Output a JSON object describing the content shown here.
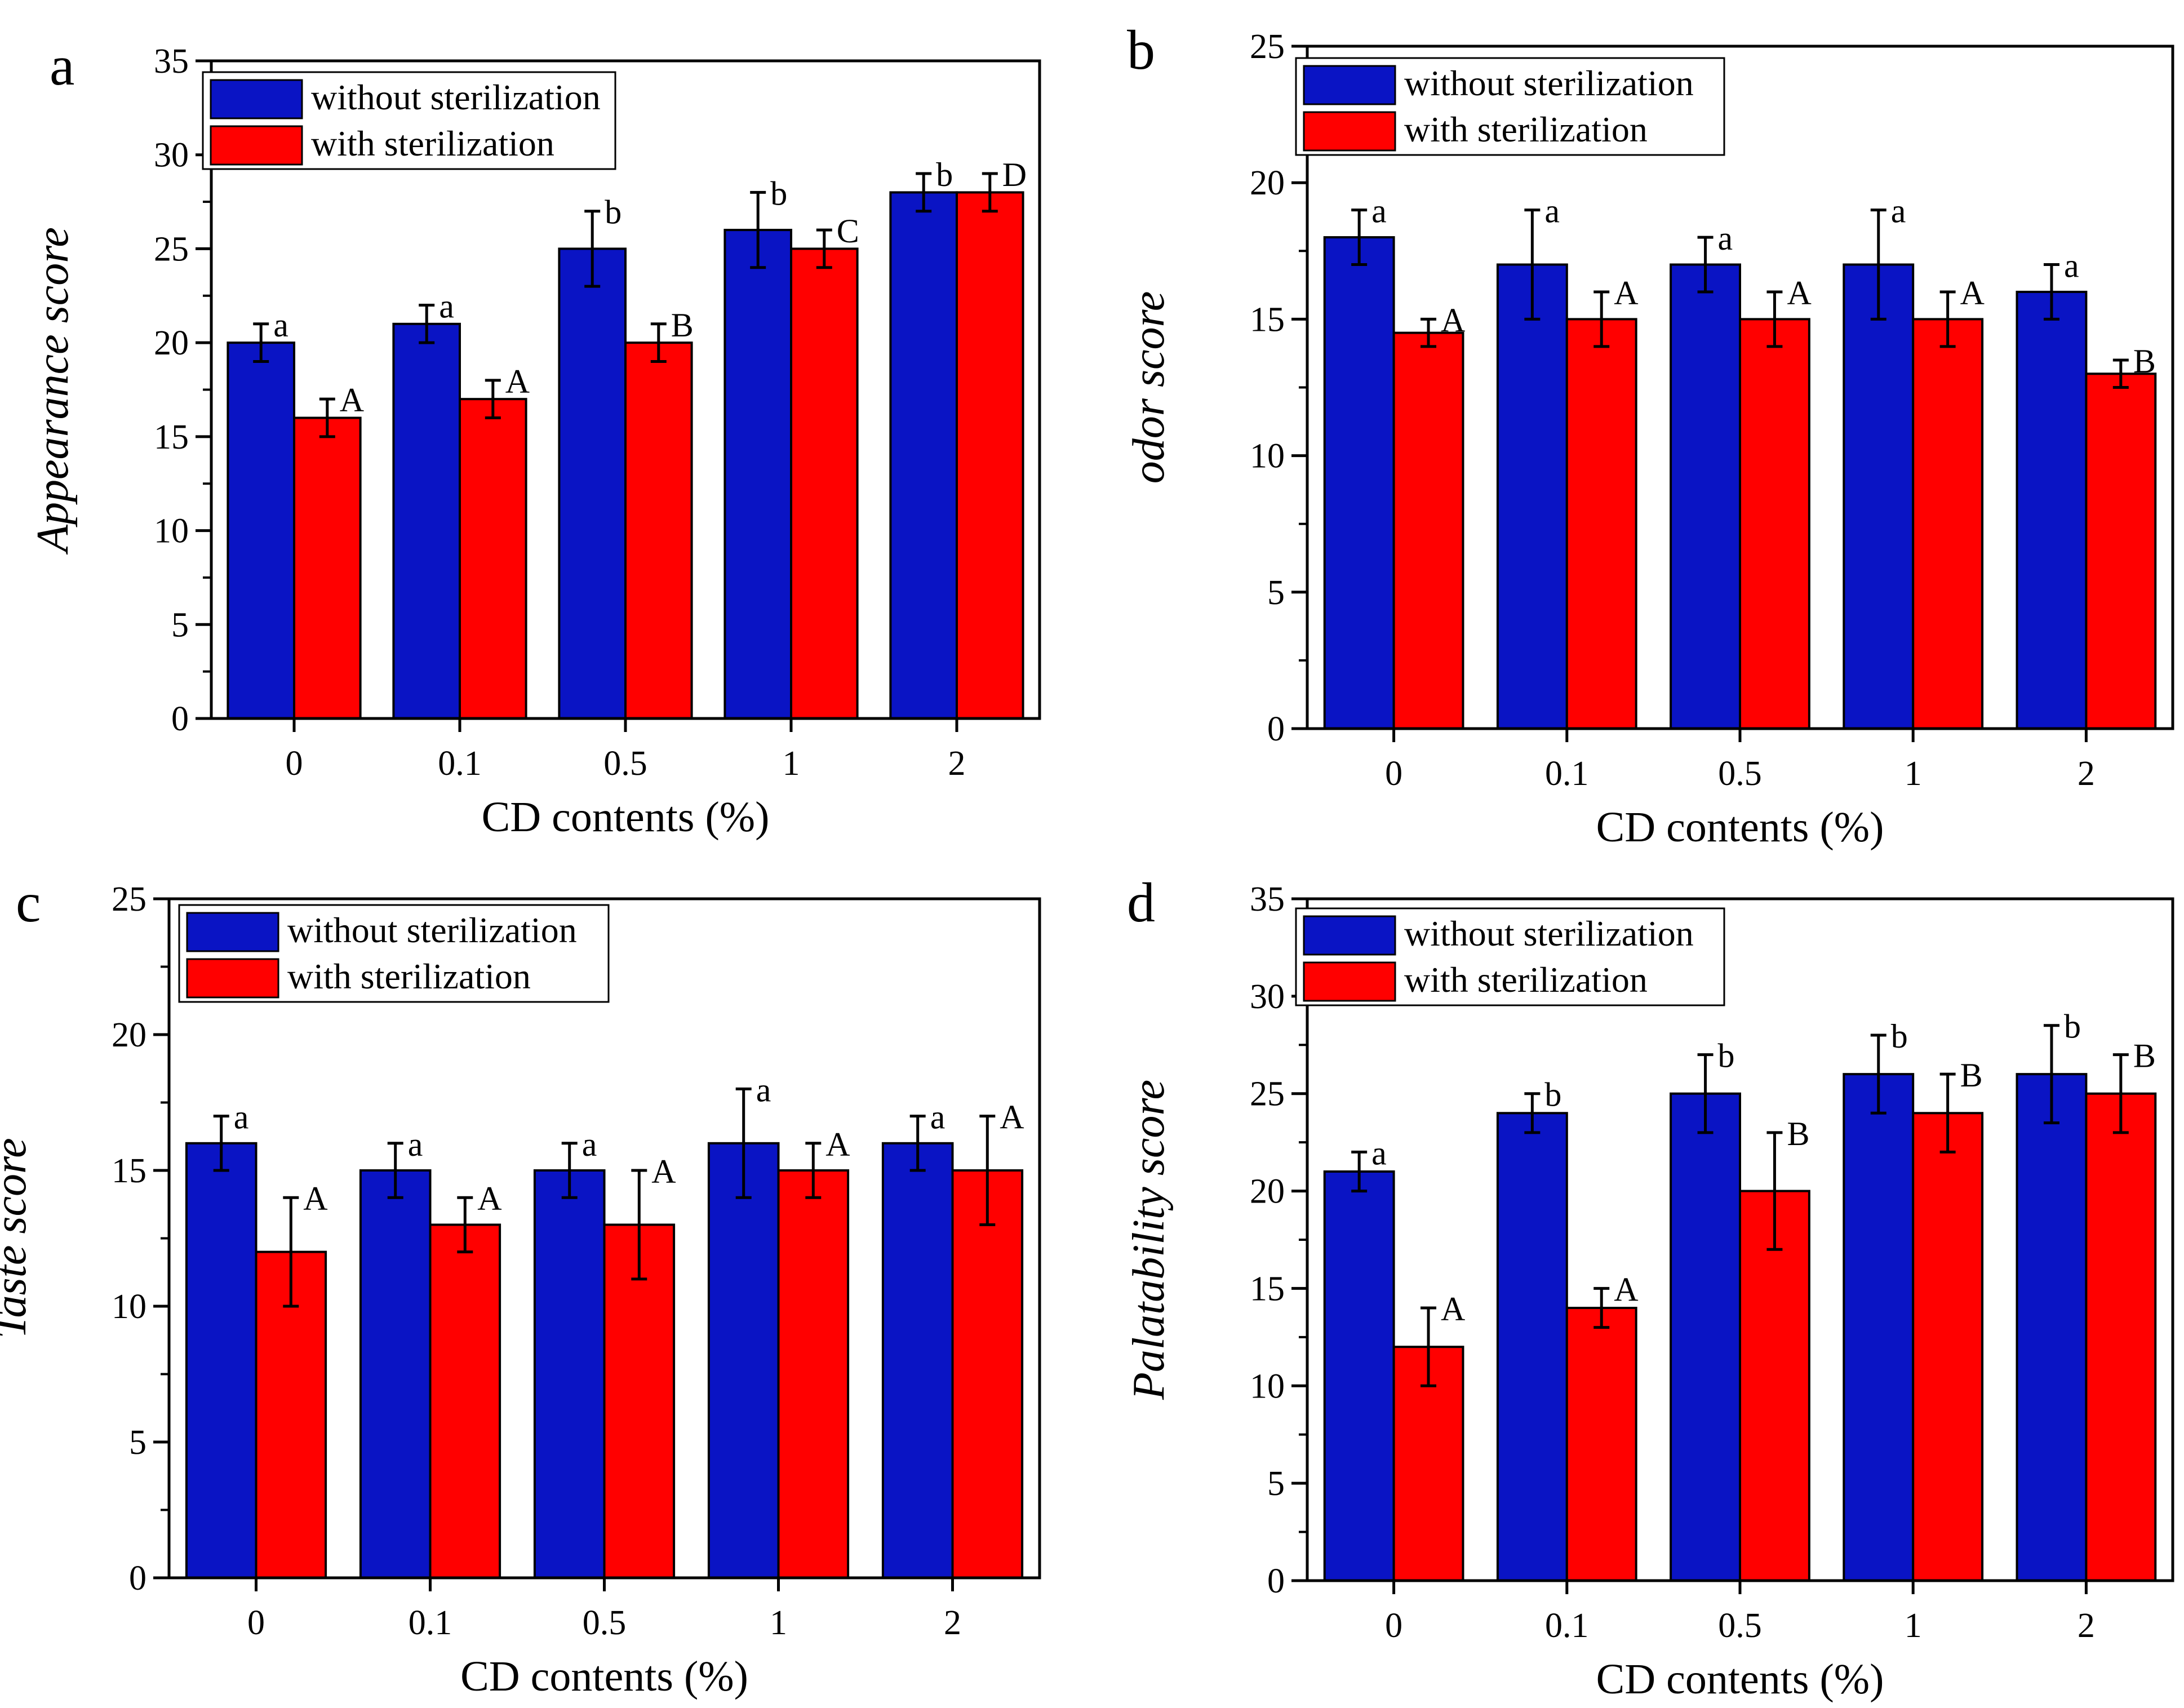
{
  "colors": {
    "without": "#0a14c4",
    "with": "#ff0000",
    "frame": "#000000",
    "background": "#ffffff"
  },
  "chart_data": [
    {
      "panel": "a",
      "type": "bar",
      "xlabel": "CD contents (%)",
      "ylabel": "Appearance score",
      "ylim": [
        0,
        35
      ],
      "yticks": [
        "0",
        "5",
        "10",
        "15",
        "20",
        "25",
        "30",
        "35"
      ],
      "categories": [
        "0",
        "0.1",
        "0.5",
        "1",
        "2"
      ],
      "legend_position": "top-left",
      "series": [
        {
          "name": "without sterilization",
          "values": [
            20,
            21,
            25,
            26,
            28
          ],
          "errors": [
            1,
            1,
            2,
            2,
            1
          ],
          "labels": [
            "a",
            "a",
            "b",
            "b",
            "b"
          ]
        },
        {
          "name": "with sterilization",
          "values": [
            16,
            17,
            20,
            25,
            28
          ],
          "errors": [
            1,
            1,
            1,
            1,
            1
          ],
          "labels": [
            "A",
            "A",
            "B",
            "C",
            "D"
          ]
        }
      ]
    },
    {
      "panel": "b",
      "type": "bar",
      "xlabel": "CD contents (%)",
      "ylabel": "odor score",
      "ylim": [
        0,
        25
      ],
      "yticks": [
        "0",
        "5",
        "10",
        "15",
        "20",
        "25"
      ],
      "categories": [
        "0",
        "0.1",
        "0.5",
        "1",
        "2"
      ],
      "legend_position": "top-left",
      "series": [
        {
          "name": "without sterilization",
          "values": [
            18,
            17,
            17,
            17,
            16
          ],
          "errors": [
            1,
            2,
            1,
            2,
            1
          ],
          "labels": [
            "a",
            "a",
            "a",
            "a",
            "a"
          ]
        },
        {
          "name": "with sterilization",
          "values": [
            14.5,
            15,
            15,
            15,
            13
          ],
          "errors": [
            0.5,
            1,
            1,
            1,
            0.5
          ],
          "labels": [
            "A",
            "A",
            "A",
            "A",
            "B"
          ]
        }
      ]
    },
    {
      "panel": "c",
      "type": "bar",
      "xlabel": "CD contents (%)",
      "ylabel": "Taste score",
      "ylim": [
        0,
        25
      ],
      "yticks": [
        "0",
        "5",
        "10",
        "15",
        "20",
        "25"
      ],
      "categories": [
        "0",
        "0.1",
        "0.5",
        "1",
        "2"
      ],
      "legend_position": "top-left",
      "series": [
        {
          "name": "without sterilization",
          "values": [
            16,
            15,
            15,
            16,
            16
          ],
          "errors": [
            1,
            1,
            1,
            2,
            1
          ],
          "labels": [
            "a",
            "a",
            "a",
            "a",
            "a"
          ]
        },
        {
          "name": "with sterilization",
          "values": [
            12,
            13,
            13,
            15,
            15
          ],
          "errors": [
            2,
            1,
            2,
            1,
            2
          ],
          "labels": [
            "A",
            "A",
            "A",
            "A",
            "A"
          ]
        }
      ]
    },
    {
      "panel": "d",
      "type": "bar",
      "xlabel": "CD contents (%)",
      "ylabel": "Palatability score",
      "ylim": [
        0,
        35
      ],
      "yticks": [
        "0",
        "5",
        "10",
        "15",
        "20",
        "25",
        "30",
        "35"
      ],
      "categories": [
        "0",
        "0.1",
        "0.5",
        "1",
        "2"
      ],
      "legend_position": "top-left",
      "series": [
        {
          "name": "without sterilization",
          "values": [
            21,
            24,
            25,
            26,
            26
          ],
          "errors": [
            1,
            1,
            2,
            2,
            2.5
          ],
          "labels": [
            "a",
            "b",
            "b",
            "b",
            "b"
          ]
        },
        {
          "name": "with sterilization",
          "values": [
            12,
            14,
            20,
            24,
            25
          ],
          "errors": [
            2,
            1,
            3,
            2,
            2
          ],
          "labels": [
            "A",
            "A",
            "B",
            "B",
            "B"
          ]
        }
      ]
    }
  ]
}
